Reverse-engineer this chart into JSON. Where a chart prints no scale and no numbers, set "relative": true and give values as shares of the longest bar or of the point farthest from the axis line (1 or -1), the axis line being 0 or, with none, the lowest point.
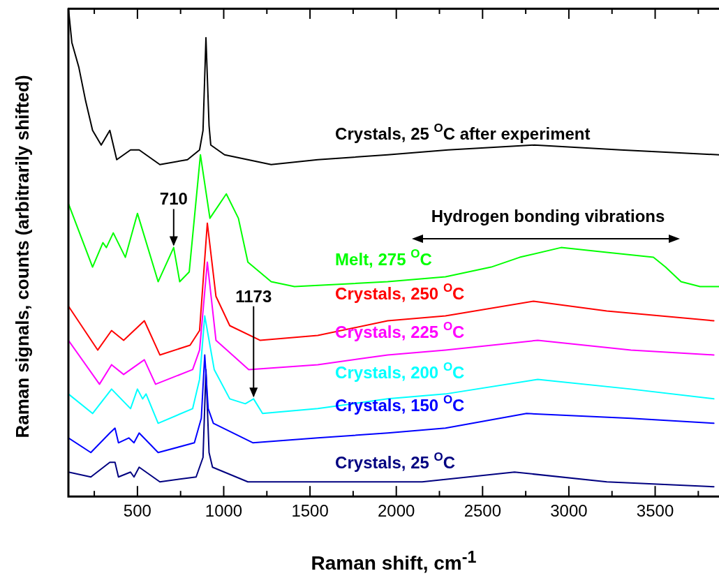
{
  "chart_data": {
    "type": "line",
    "relative": true,
    "xlabel": "Raman shift, cm$^{-1}$",
    "ylabel": "Raman signals, counts (arbitrarily shifted)",
    "xlim": [
      100,
      3870
    ],
    "xticks": [
      {
        "value": 250,
        "label": null
      },
      500,
      {
        "value": 750,
        "label": null
      },
      1000,
      {
        "value": 1250,
        "label": null
      },
      1500,
      {
        "value": 1750,
        "label": null
      },
      2000,
      {
        "value": 2250,
        "label": null
      },
      2500,
      {
        "value": 2750,
        "label": null
      },
      3000,
      {
        "value": 3250,
        "label": null
      },
      3500,
      {
        "value": 3750,
        "label": null
      }
    ],
    "marker": "none",
    "line_style": "solid",
    "legend": false,
    "series": [
      {
        "name": "Crystals, 25 $^{O}$C after experiment",
        "color": "#000000",
        "x": [
          100,
          120,
          160,
          200,
          240,
          290,
          340,
          380,
          460,
          510,
          630,
          790,
          860,
          880,
          897,
          915,
          925,
          1005,
          1275,
          1545,
          1950,
          2300,
          2800,
          3300,
          3870
        ],
        "values": [
          1.0,
          0.93,
          0.88,
          0.81,
          0.75,
          0.72,
          0.75,
          0.69,
          0.71,
          0.71,
          0.68,
          0.69,
          0.71,
          0.75,
          0.94,
          0.76,
          0.72,
          0.7,
          0.68,
          0.69,
          0.7,
          0.71,
          0.72,
          0.71,
          0.7
        ]
      },
      {
        "name": "Melt, 275 $^{O}$C",
        "color": "#00ff00",
        "x": [
          100,
          240,
          300,
          320,
          360,
          430,
          500,
          620,
          710,
          745,
          800,
          865,
          920,
          1015,
          1085,
          1140,
          1275,
          1410,
          1950,
          2285,
          2550,
          2715,
          2955,
          3220,
          3490,
          3560,
          3650,
          3760,
          3870
        ],
        "values": [
          0.6,
          0.47,
          0.52,
          0.51,
          0.54,
          0.49,
          0.58,
          0.44,
          0.51,
          0.44,
          0.46,
          0.7,
          0.57,
          0.62,
          0.57,
          0.48,
          0.44,
          0.43,
          0.44,
          0.45,
          0.47,
          0.49,
          0.51,
          0.5,
          0.49,
          0.47,
          0.44,
          0.43,
          0.43
        ]
      },
      {
        "name": "Crystals, 250 $^{O}$C",
        "color": "#ff0000",
        "x": [
          100,
          270,
          350,
          420,
          540,
          630,
          805,
          860,
          905,
          955,
          1035,
          1210,
          1545,
          1950,
          2285,
          2795,
          3220,
          3840
        ],
        "values": [
          0.39,
          0.3,
          0.34,
          0.32,
          0.36,
          0.29,
          0.31,
          0.34,
          0.56,
          0.41,
          0.35,
          0.32,
          0.33,
          0.36,
          0.37,
          0.4,
          0.38,
          0.36
        ]
      },
      {
        "name": "Crystals, 225 $^{O}$C",
        "color": "#ff00ff",
        "x": [
          100,
          280,
          350,
          420,
          540,
          605,
          820,
          860,
          905,
          955,
          1145,
          1545,
          1950,
          2285,
          2820,
          3360,
          3840
        ],
        "values": [
          0.32,
          0.23,
          0.27,
          0.25,
          0.28,
          0.23,
          0.26,
          0.3,
          0.48,
          0.32,
          0.26,
          0.27,
          0.29,
          0.3,
          0.32,
          0.3,
          0.29
        ]
      },
      {
        "name": "Crystals, 200 $^{O}$C",
        "color": "#00ffff",
        "x": [
          100,
          240,
          350,
          460,
          500,
          530,
          550,
          620,
          820,
          860,
          890,
          945,
          1035,
          1125,
          1173,
          1225,
          1545,
          1950,
          2285,
          2820,
          3360,
          3840
        ],
        "values": [
          0.21,
          0.17,
          0.22,
          0.18,
          0.22,
          0.2,
          0.21,
          0.15,
          0.18,
          0.24,
          0.37,
          0.26,
          0.2,
          0.19,
          0.2,
          0.17,
          0.18,
          0.2,
          0.21,
          0.24,
          0.22,
          0.2
        ]
      },
      {
        "name": "Crystals, 150 $^{O}$C",
        "color": "#0000ff",
        "x": [
          100,
          230,
          340,
          370,
          390,
          450,
          480,
          510,
          620,
          830,
          870,
          890,
          910,
          940,
          1170,
          1545,
          1950,
          2285,
          2755,
          3360,
          3840
        ],
        "values": [
          0.12,
          0.09,
          0.13,
          0.14,
          0.11,
          0.12,
          0.11,
          0.13,
          0.09,
          0.11,
          0.16,
          0.29,
          0.18,
          0.15,
          0.11,
          0.12,
          0.13,
          0.14,
          0.17,
          0.16,
          0.15
        ]
      },
      {
        "name": "Crystals, 25 $^{O}$C",
        "color": "#000080",
        "x": [
          100,
          230,
          340,
          370,
          390,
          460,
          480,
          510,
          630,
          840,
          880,
          897,
          915,
          935,
          1140,
          1680,
          2150,
          2685,
          3220,
          3840
        ],
        "values": [
          0.05,
          0.04,
          0.07,
          0.07,
          0.04,
          0.05,
          0.04,
          0.06,
          0.03,
          0.04,
          0.08,
          0.26,
          0.09,
          0.06,
          0.03,
          0.03,
          0.03,
          0.05,
          0.03,
          0.02
        ]
      }
    ],
    "annotations": [
      {
        "text": "710",
        "x": 710,
        "y": 0.51
      },
      {
        "text": "1173",
        "x": 1173,
        "y": 0.2
      },
      "Hydrogen bonding vibrations"
    ]
  }
}
